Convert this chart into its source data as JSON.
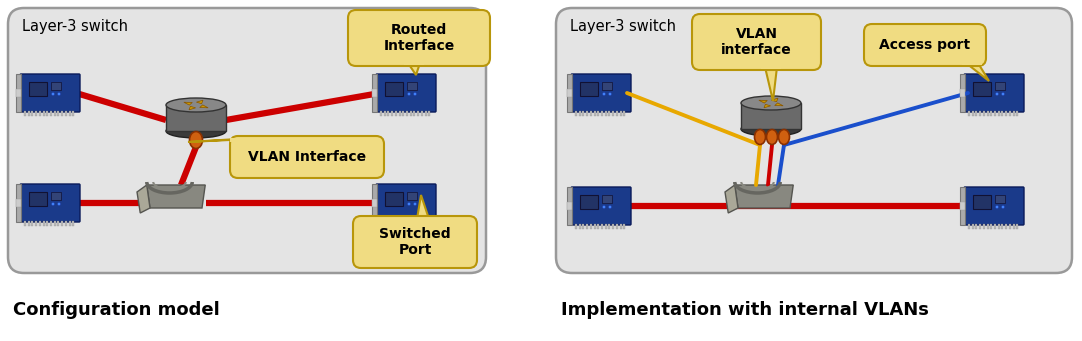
{
  "bg_color": "#ffffff",
  "panel_bg": "#e4e4e4",
  "panel_border": "#999999",
  "left_title": "Layer-3 switch",
  "right_title": "Layer-3 switch",
  "left_caption": "Configuration model",
  "right_caption": "Implementation with internal VLANs",
  "callout_bg": "#f0dc82",
  "callout_border": "#b8960a",
  "red_line": "#cc0000",
  "yellow_line": "#e8a800",
  "blue_line": "#1a4fcc",
  "orange_dot": "#d06010",
  "router_body": "#6a6a6a",
  "router_top": "#888888",
  "router_shadow": "#4a4a4a",
  "router_arrow": "#cc9900",
  "switch_front": "#888880",
  "switch_side": "#aaa898",
  "pcb_blue": "#1a3a8a",
  "pcb_dark": "#0a1a5a",
  "pcb_chip": "#223366",
  "pcb_bracket": "#999999"
}
